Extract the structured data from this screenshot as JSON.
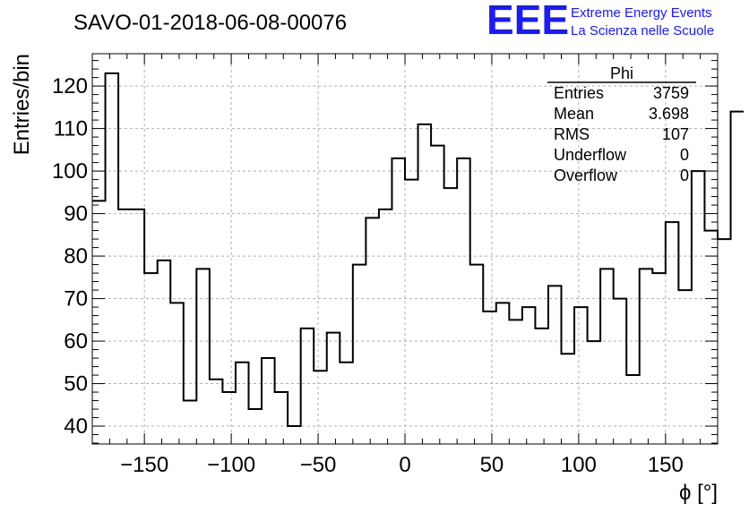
{
  "chart_data": {
    "type": "histogram",
    "title": "SAVO-01-2018-06-08-00076",
    "xlabel": "ϕ [°]",
    "ylabel": "Entries/bin",
    "xlim": [
      -180,
      180
    ],
    "ylim": [
      35.8,
      127.6
    ],
    "x_ticks": [
      -150,
      -100,
      -50,
      0,
      50,
      100,
      150
    ],
    "x_tick_labels": [
      "−150",
      "−100",
      "−50",
      "0",
      "50",
      "100",
      "150"
    ],
    "y_ticks": [
      40,
      50,
      60,
      70,
      80,
      90,
      100,
      110,
      120
    ],
    "y_tick_labels": [
      "40",
      "50",
      "60",
      "70",
      "80",
      "90",
      "100",
      "110",
      "120"
    ],
    "grid": true,
    "bin_width": 7.5,
    "bin_start": -180,
    "values": [
      93,
      123,
      91,
      91,
      76,
      79,
      69,
      46,
      77,
      51,
      48,
      55,
      44,
      56,
      48,
      40,
      63,
      53,
      62,
      55,
      78,
      89,
      91,
      103,
      98,
      111,
      106,
      96,
      103,
      78,
      67,
      69,
      65,
      68,
      63,
      73,
      57,
      68,
      60,
      77,
      70,
      52,
      77,
      76,
      88,
      72,
      100,
      86,
      84,
      114
    ],
    "stats_box": {
      "title": "Phi",
      "rows": [
        {
          "label": "Entries",
          "value": "3759"
        },
        {
          "label": "Mean",
          "value": "3.698"
        },
        {
          "label": "RMS",
          "value": "107"
        },
        {
          "label": "Underflow",
          "value": "0"
        },
        {
          "label": "Overflow",
          "value": "0"
        }
      ]
    }
  },
  "logo": {
    "text": "EEE",
    "line1": "Extreme Energy Events",
    "line2": "La Scienza nelle Scuole",
    "color": "#1a1aff"
  }
}
